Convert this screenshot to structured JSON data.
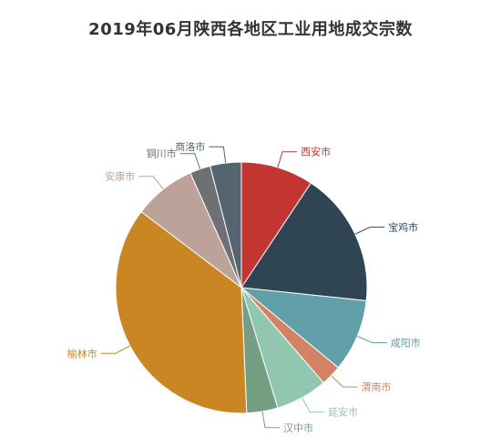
{
  "chart_data": {
    "type": "pie",
    "title": "2019年06月陕西各地区工业用地成交宗数",
    "categories": [
      "西安市",
      "宝鸡市",
      "咸阳市",
      "渭南市",
      "延安市",
      "汉中市",
      "榆林市",
      "安康市",
      "铜川市",
      "商洛市"
    ],
    "values": [
      7,
      13,
      7,
      2,
      5,
      3,
      27,
      6,
      2,
      3
    ],
    "colors": [
      "#c23531",
      "#2f4554",
      "#61a0a8",
      "#d48265",
      "#91c7ae",
      "#749f83",
      "#ca8622",
      "#bda29a",
      "#6e7074",
      "#546570"
    ],
    "start_angle_deg": 90,
    "direction": "clockwise"
  }
}
